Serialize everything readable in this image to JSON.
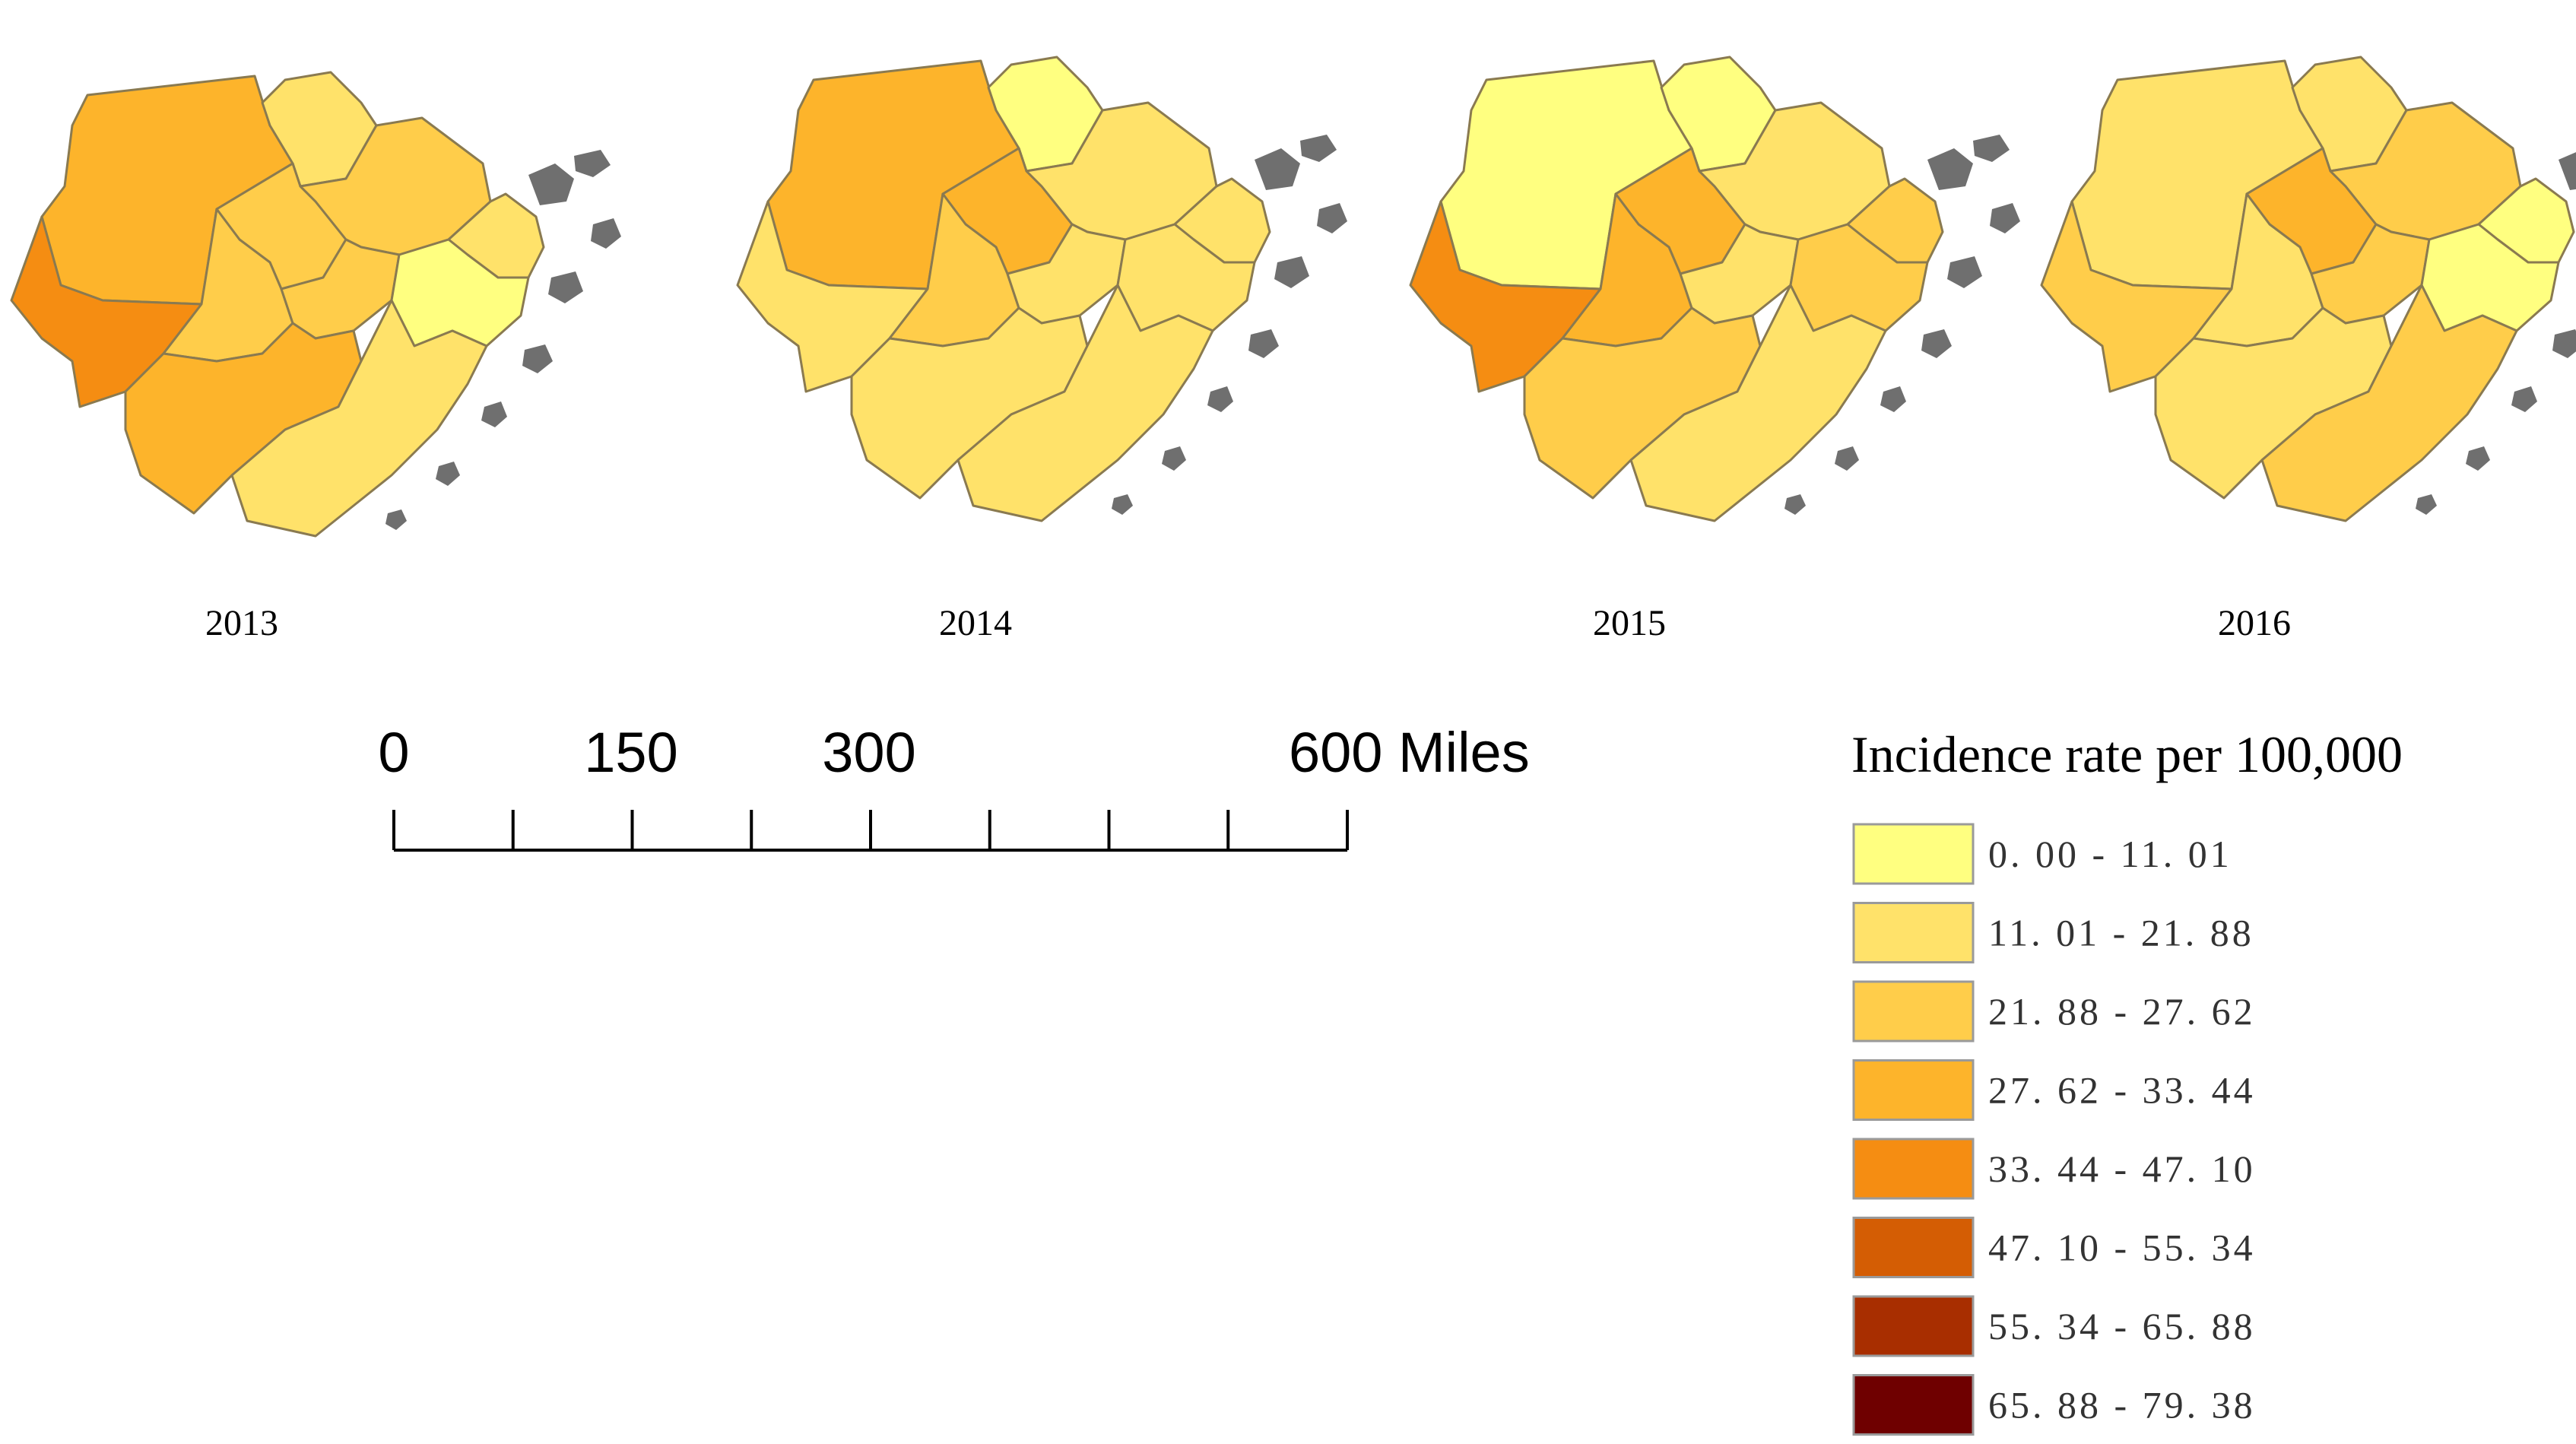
{
  "maps": [
    {
      "year": "2013",
      "classes": [
        3,
        1,
        2,
        2,
        4,
        2,
        2,
        1,
        0,
        3,
        1
      ]
    },
    {
      "year": "2014",
      "classes": [
        3,
        0,
        3,
        1,
        1,
        2,
        1,
        1,
        1,
        1,
        1
      ]
    },
    {
      "year": "2015",
      "classes": [
        0,
        0,
        3,
        1,
        4,
        3,
        1,
        2,
        2,
        2,
        1
      ]
    },
    {
      "year": "2016",
      "classes": [
        1,
        1,
        3,
        2,
        2,
        1,
        2,
        0,
        0,
        1,
        2
      ]
    }
  ],
  "scale_bar": {
    "labels": [
      "0",
      "150",
      "300",
      "600 Miles"
    ],
    "ticks_miles": [
      0,
      75,
      150,
      225,
      300,
      375,
      450,
      525,
      600
    ],
    "max_miles": 600
  },
  "legend": {
    "title": "Incidence rate per 100,000",
    "items": [
      {
        "label": "0. 00  -  11. 01",
        "color": "#ffff80"
      },
      {
        "label": "11. 01  -  21. 88",
        "color": "#ffe26a"
      },
      {
        "label": "21. 88  -  27. 62",
        "color": "#ffcd4a"
      },
      {
        "label": "27. 62  -  33. 44",
        "color": "#fdb42b"
      },
      {
        "label": "33. 44  -  47. 10",
        "color": "#f58d12"
      },
      {
        "label": "47. 10  -  55. 34",
        "color": "#d45d04"
      },
      {
        "label": "55. 34  -  65. 88",
        "color": "#a82e00"
      },
      {
        "label": "65. 88  -  79. 38",
        "color": "#6f0000"
      }
    ]
  }
}
